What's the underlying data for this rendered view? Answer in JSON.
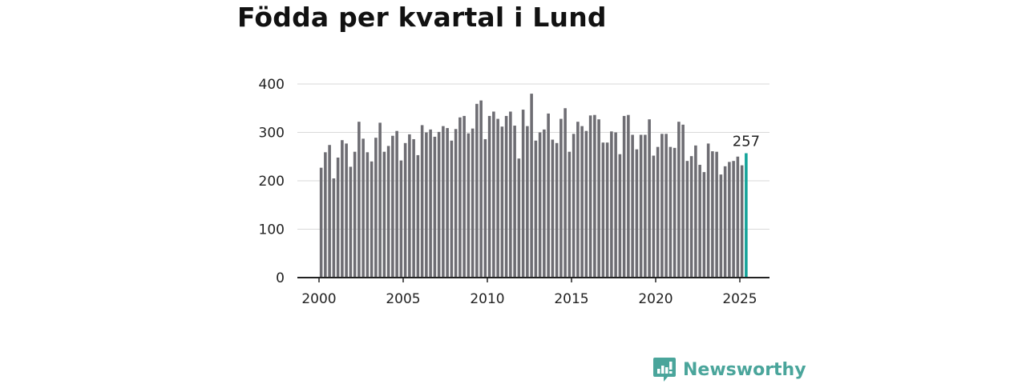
{
  "title": "Födda per kvartal i Lund",
  "brand": {
    "name": "Newsworthy",
    "icon": "newsworthy-logo-icon",
    "color": "#4aa59b"
  },
  "chart_data": {
    "type": "bar",
    "title": "Födda per kvartal i Lund",
    "xlabel": "",
    "ylabel": "",
    "ylim": [
      0,
      400
    ],
    "yticks": [
      0,
      100,
      200,
      300,
      400
    ],
    "xticks": [
      2000,
      2005,
      2010,
      2015,
      2020,
      2025
    ],
    "xlim": [
      1999.5,
      2026.9
    ],
    "grid": true,
    "colors": {
      "bar": "#6e6d73",
      "highlight": "#14a39a",
      "grid": "#d9d9d9",
      "axis": "#222222"
    },
    "series": [
      {
        "values": [
          227,
          259,
          274,
          205,
          248,
          284,
          277,
          229,
          260,
          322,
          287,
          259,
          240,
          289,
          320,
          260,
          272,
          293,
          303,
          242,
          278,
          296,
          286,
          253,
          315,
          300,
          306,
          291,
          301,
          313,
          309,
          283,
          307,
          331,
          334,
          298,
          308,
          359,
          366,
          286,
          334,
          343,
          328,
          312,
          334,
          343,
          314,
          246,
          347,
          313,
          380,
          283,
          300,
          306,
          339,
          285,
          278,
          328,
          350,
          260,
          297,
          322,
          313,
          303,
          335,
          336,
          327,
          279,
          279,
          302,
          300,
          255,
          334,
          336,
          295,
          265,
          295,
          295,
          327,
          252,
          270,
          297,
          297,
          270,
          268,
          322,
          316,
          241,
          251,
          273,
          233,
          218,
          277,
          261,
          260,
          213,
          230,
          239,
          241,
          250,
          232,
          257
        ]
      }
    ],
    "start": {
      "year": 2000,
      "quarter": 1
    },
    "highlight_last": true,
    "last_label": "257"
  }
}
